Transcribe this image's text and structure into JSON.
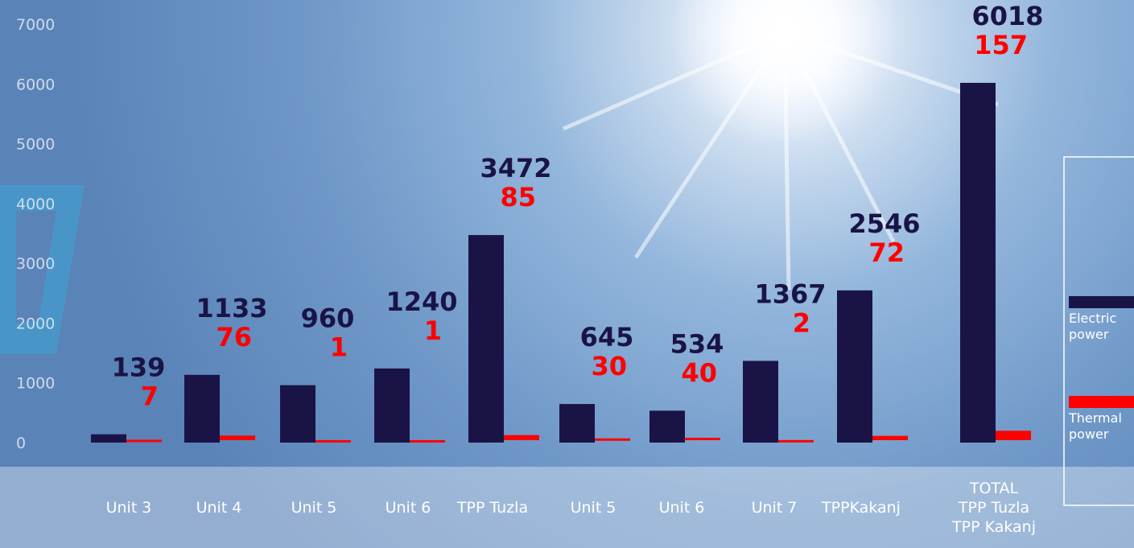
{
  "chart_data": {
    "type": "bar",
    "categories": [
      "Unit 3",
      "Unit 4",
      "Unit 5",
      "Unit 6",
      "TPP Tuzla",
      "Unit 5",
      "Unit 6",
      "Unit 7",
      "TPPKakanj",
      "TOTAL\nTPP Tuzla\nTPP Kakanj"
    ],
    "series": [
      {
        "name": "Electric power",
        "color": "#1a1446",
        "values": [
          139,
          1133,
          960,
          1240,
          3472,
          645,
          534,
          1367,
          2546,
          6018
        ]
      },
      {
        "name": "Thermal power",
        "color": "#ff0000",
        "values": [
          7,
          76,
          1,
          1,
          85,
          30,
          40,
          2,
          72,
          157
        ]
      }
    ],
    "ylim": [
      0,
      7000
    ],
    "yticks": [
      0,
      1000,
      2000,
      3000,
      4000,
      5000,
      6000,
      7000
    ],
    "legend": "right"
  }
}
